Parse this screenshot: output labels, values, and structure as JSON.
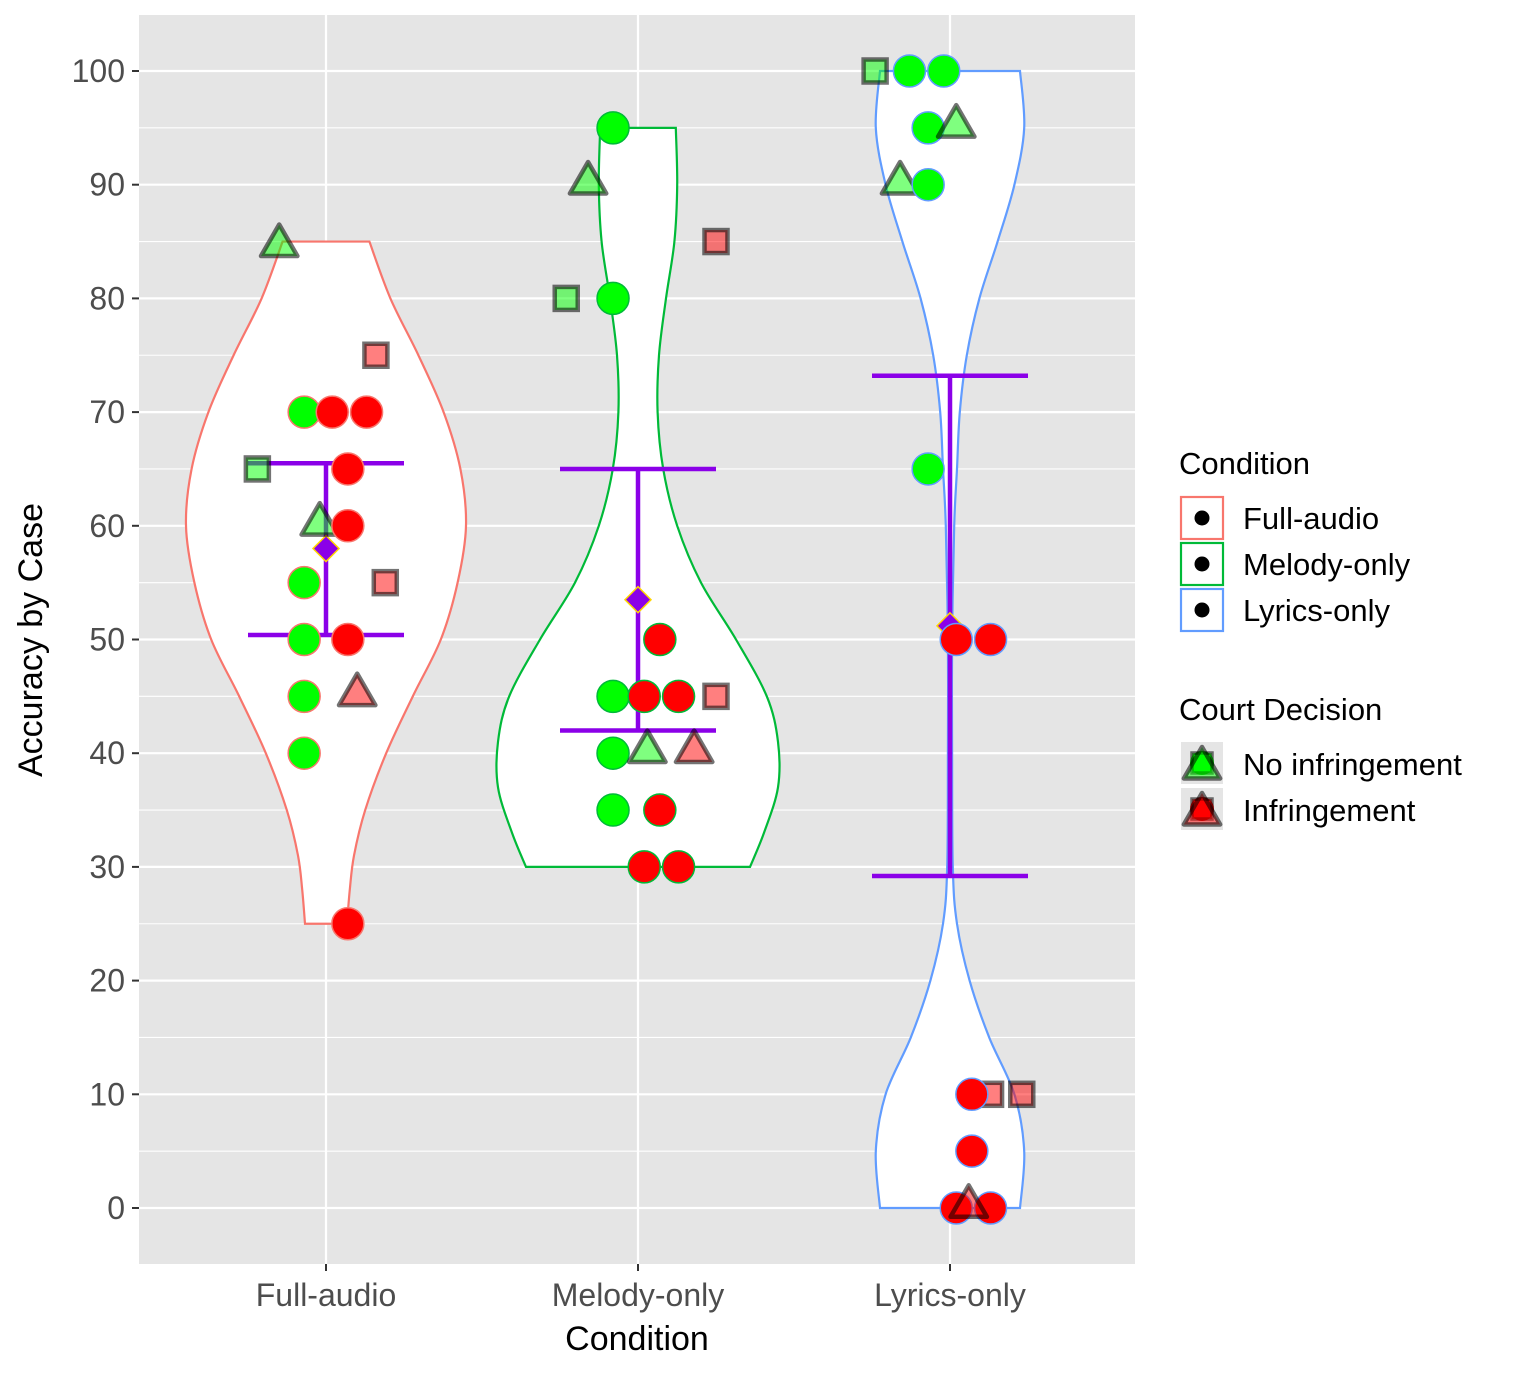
{
  "chart_data": {
    "type": "violin",
    "title": "",
    "xlabel": "Condition",
    "ylabel": "Accuracy by Case",
    "ylim": [
      -5,
      105
    ],
    "yticks": [
      0,
      10,
      20,
      30,
      40,
      50,
      60,
      70,
      80,
      90,
      100
    ],
    "grid": true,
    "legend_position": "right",
    "categories": [
      "Full-audio",
      "Melody-only",
      "Lyrics-only"
    ],
    "colors": {
      "Full-audio": "#F8766D",
      "Melody-only": "#00BA38",
      "Lyrics-only": "#619CFF",
      "No infringement": "#00FF00",
      "Infringement": "#FF0000",
      "summary": "#8B00E8"
    },
    "violins": [
      {
        "condition": "Full-audio",
        "min": 25,
        "max": 85,
        "profile": [
          [
            25,
            0.15
          ],
          [
            28,
            0.17
          ],
          [
            31,
            0.2
          ],
          [
            35,
            0.28
          ],
          [
            40,
            0.43
          ],
          [
            45,
            0.62
          ],
          [
            50,
            0.82
          ],
          [
            55,
            0.94
          ],
          [
            60,
            1.0
          ],
          [
            65,
            0.96
          ],
          [
            70,
            0.84
          ],
          [
            75,
            0.66
          ],
          [
            80,
            0.46
          ],
          [
            85,
            0.31
          ]
        ]
      },
      {
        "condition": "Melody-only",
        "min": 30,
        "max": 95,
        "profile": [
          [
            30,
            0.8
          ],
          [
            33,
            0.9
          ],
          [
            37,
            1.0
          ],
          [
            41,
            1.0
          ],
          [
            45,
            0.92
          ],
          [
            50,
            0.7
          ],
          [
            55,
            0.45
          ],
          [
            60,
            0.28
          ],
          [
            65,
            0.18
          ],
          [
            70,
            0.14
          ],
          [
            75,
            0.15
          ],
          [
            80,
            0.2
          ],
          [
            85,
            0.26
          ],
          [
            90,
            0.28
          ],
          [
            95,
            0.27
          ]
        ]
      },
      {
        "condition": "Lyrics-only",
        "min": 0,
        "max": 100,
        "profile": [
          [
            0,
            0.5
          ],
          [
            5,
            0.53
          ],
          [
            10,
            0.46
          ],
          [
            15,
            0.28
          ],
          [
            20,
            0.14
          ],
          [
            25,
            0.05
          ],
          [
            30,
            0.02
          ],
          [
            40,
            0.015
          ],
          [
            50,
            0.015
          ],
          [
            60,
            0.03
          ],
          [
            65,
            0.05
          ],
          [
            70,
            0.07
          ],
          [
            75,
            0.12
          ],
          [
            80,
            0.21
          ],
          [
            85,
            0.34
          ],
          [
            90,
            0.46
          ],
          [
            95,
            0.53
          ],
          [
            100,
            0.5
          ]
        ]
      }
    ],
    "summaries": [
      {
        "condition": "Full-audio",
        "mean": 58,
        "lower": 50.4,
        "upper": 65.5
      },
      {
        "condition": "Melody-only",
        "mean": 53.5,
        "lower": 42,
        "upper": 65
      },
      {
        "condition": "Lyrics-only",
        "mean": 51.2,
        "lower": 29.2,
        "upper": 73.2
      }
    ],
    "points": [
      {
        "condition": "Full-audio",
        "x_offset": -0.15,
        "y": 85,
        "shape": "triangle",
        "decision": "No infringement"
      },
      {
        "condition": "Full-audio",
        "x_offset": 0.16,
        "y": 75,
        "shape": "square",
        "decision": "Infringement"
      },
      {
        "condition": "Full-audio",
        "x_offset": -0.07,
        "y": 70,
        "shape": "circle",
        "decision": "No infringement"
      },
      {
        "condition": "Full-audio",
        "x_offset": 0.02,
        "y": 70,
        "shape": "circle",
        "decision": "Infringement"
      },
      {
        "condition": "Full-audio",
        "x_offset": 0.13,
        "y": 70,
        "shape": "circle",
        "decision": "Infringement"
      },
      {
        "condition": "Full-audio",
        "x_offset": -0.22,
        "y": 65,
        "shape": "square",
        "decision": "No infringement"
      },
      {
        "condition": "Full-audio",
        "x_offset": 0.07,
        "y": 65,
        "shape": "circle",
        "decision": "Infringement"
      },
      {
        "condition": "Full-audio",
        "x_offset": -0.02,
        "y": 60.5,
        "shape": "triangle",
        "decision": "No infringement"
      },
      {
        "condition": "Full-audio",
        "x_offset": 0.07,
        "y": 60,
        "shape": "circle",
        "decision": "Infringement"
      },
      {
        "condition": "Full-audio",
        "x_offset": -0.07,
        "y": 55,
        "shape": "circle",
        "decision": "No infringement"
      },
      {
        "condition": "Full-audio",
        "x_offset": 0.19,
        "y": 55,
        "shape": "square",
        "decision": "Infringement"
      },
      {
        "condition": "Full-audio",
        "x_offset": -0.07,
        "y": 50,
        "shape": "circle",
        "decision": "No infringement"
      },
      {
        "condition": "Full-audio",
        "x_offset": 0.07,
        "y": 50,
        "shape": "circle",
        "decision": "Infringement"
      },
      {
        "condition": "Full-audio",
        "x_offset": -0.07,
        "y": 45,
        "shape": "circle",
        "decision": "No infringement"
      },
      {
        "condition": "Full-audio",
        "x_offset": 0.1,
        "y": 45.5,
        "shape": "triangle",
        "decision": "Infringement"
      },
      {
        "condition": "Full-audio",
        "x_offset": -0.07,
        "y": 40,
        "shape": "circle",
        "decision": "No infringement"
      },
      {
        "condition": "Full-audio",
        "x_offset": 0.07,
        "y": 25,
        "shape": "circle",
        "decision": "Infringement"
      },
      {
        "condition": "Melody-only",
        "x_offset": -0.08,
        "y": 95,
        "shape": "circle",
        "decision": "No infringement"
      },
      {
        "condition": "Melody-only",
        "x_offset": -0.16,
        "y": 90.5,
        "shape": "triangle",
        "decision": "No infringement"
      },
      {
        "condition": "Melody-only",
        "x_offset": 0.25,
        "y": 85,
        "shape": "square",
        "decision": "Infringement"
      },
      {
        "condition": "Melody-only",
        "x_offset": -0.23,
        "y": 80,
        "shape": "square",
        "decision": "No infringement"
      },
      {
        "condition": "Melody-only",
        "x_offset": -0.08,
        "y": 80,
        "shape": "circle",
        "decision": "No infringement"
      },
      {
        "condition": "Melody-only",
        "x_offset": 0.07,
        "y": 50,
        "shape": "circle",
        "decision": "Infringement"
      },
      {
        "condition": "Melody-only",
        "x_offset": -0.08,
        "y": 45,
        "shape": "circle",
        "decision": "No infringement"
      },
      {
        "condition": "Melody-only",
        "x_offset": 0.02,
        "y": 45,
        "shape": "circle",
        "decision": "Infringement"
      },
      {
        "condition": "Melody-only",
        "x_offset": 0.13,
        "y": 45,
        "shape": "circle",
        "decision": "Infringement"
      },
      {
        "condition": "Melody-only",
        "x_offset": 0.25,
        "y": 45,
        "shape": "square",
        "decision": "Infringement"
      },
      {
        "condition": "Melody-only",
        "x_offset": -0.08,
        "y": 40,
        "shape": "circle",
        "decision": "No infringement"
      },
      {
        "condition": "Melody-only",
        "x_offset": 0.03,
        "y": 40.5,
        "shape": "triangle",
        "decision": "No infringement"
      },
      {
        "condition": "Melody-only",
        "x_offset": 0.18,
        "y": 40.5,
        "shape": "triangle",
        "decision": "Infringement"
      },
      {
        "condition": "Melody-only",
        "x_offset": -0.08,
        "y": 35,
        "shape": "circle",
        "decision": "No infringement"
      },
      {
        "condition": "Melody-only",
        "x_offset": 0.07,
        "y": 35,
        "shape": "circle",
        "decision": "Infringement"
      },
      {
        "condition": "Melody-only",
        "x_offset": 0.02,
        "y": 30,
        "shape": "circle",
        "decision": "Infringement"
      },
      {
        "condition": "Melody-only",
        "x_offset": 0.13,
        "y": 30,
        "shape": "circle",
        "decision": "Infringement"
      },
      {
        "condition": "Lyrics-only",
        "x_offset": -0.24,
        "y": 100,
        "shape": "square",
        "decision": "No infringement"
      },
      {
        "condition": "Lyrics-only",
        "x_offset": -0.13,
        "y": 100,
        "shape": "circle",
        "decision": "No infringement"
      },
      {
        "condition": "Lyrics-only",
        "x_offset": -0.02,
        "y": 100,
        "shape": "circle",
        "decision": "No infringement"
      },
      {
        "condition": "Lyrics-only",
        "x_offset": -0.07,
        "y": 95,
        "shape": "circle",
        "decision": "No infringement"
      },
      {
        "condition": "Lyrics-only",
        "x_offset": 0.02,
        "y": 95.5,
        "shape": "triangle",
        "decision": "No infringement"
      },
      {
        "condition": "Lyrics-only",
        "x_offset": -0.16,
        "y": 90.5,
        "shape": "triangle",
        "decision": "No infringement"
      },
      {
        "condition": "Lyrics-only",
        "x_offset": -0.07,
        "y": 90,
        "shape": "circle",
        "decision": "No infringement"
      },
      {
        "condition": "Lyrics-only",
        "x_offset": -0.07,
        "y": 65,
        "shape": "circle",
        "decision": "No infringement"
      },
      {
        "condition": "Lyrics-only",
        "x_offset": 0.02,
        "y": 50,
        "shape": "circle",
        "decision": "Infringement"
      },
      {
        "condition": "Lyrics-only",
        "x_offset": 0.13,
        "y": 50,
        "shape": "circle",
        "decision": "Infringement"
      },
      {
        "condition": "Lyrics-only",
        "x_offset": 0.13,
        "y": 10,
        "shape": "square",
        "decision": "Infringement"
      },
      {
        "condition": "Lyrics-only",
        "x_offset": 0.23,
        "y": 10,
        "shape": "square",
        "decision": "Infringement"
      },
      {
        "condition": "Lyrics-only",
        "x_offset": 0.07,
        "y": 10,
        "shape": "circle",
        "decision": "Infringement"
      },
      {
        "condition": "Lyrics-only",
        "x_offset": 0.07,
        "y": 5,
        "shape": "circle",
        "decision": "Infringement"
      },
      {
        "condition": "Lyrics-only",
        "x_offset": 0.02,
        "y": 0,
        "shape": "circle",
        "decision": "Infringement"
      },
      {
        "condition": "Lyrics-only",
        "x_offset": 0.13,
        "y": 0,
        "shape": "circle",
        "decision": "Infringement"
      },
      {
        "condition": "Lyrics-only",
        "x_offset": 0.06,
        "y": 0.5,
        "shape": "triangle",
        "decision": "Infringement"
      }
    ],
    "legend": {
      "condition_title": "Condition",
      "condition_items": [
        "Full-audio",
        "Melody-only",
        "Lyrics-only"
      ],
      "decision_title": "Court Decision",
      "decision_items": [
        "No infringement",
        "Infringement"
      ]
    }
  }
}
